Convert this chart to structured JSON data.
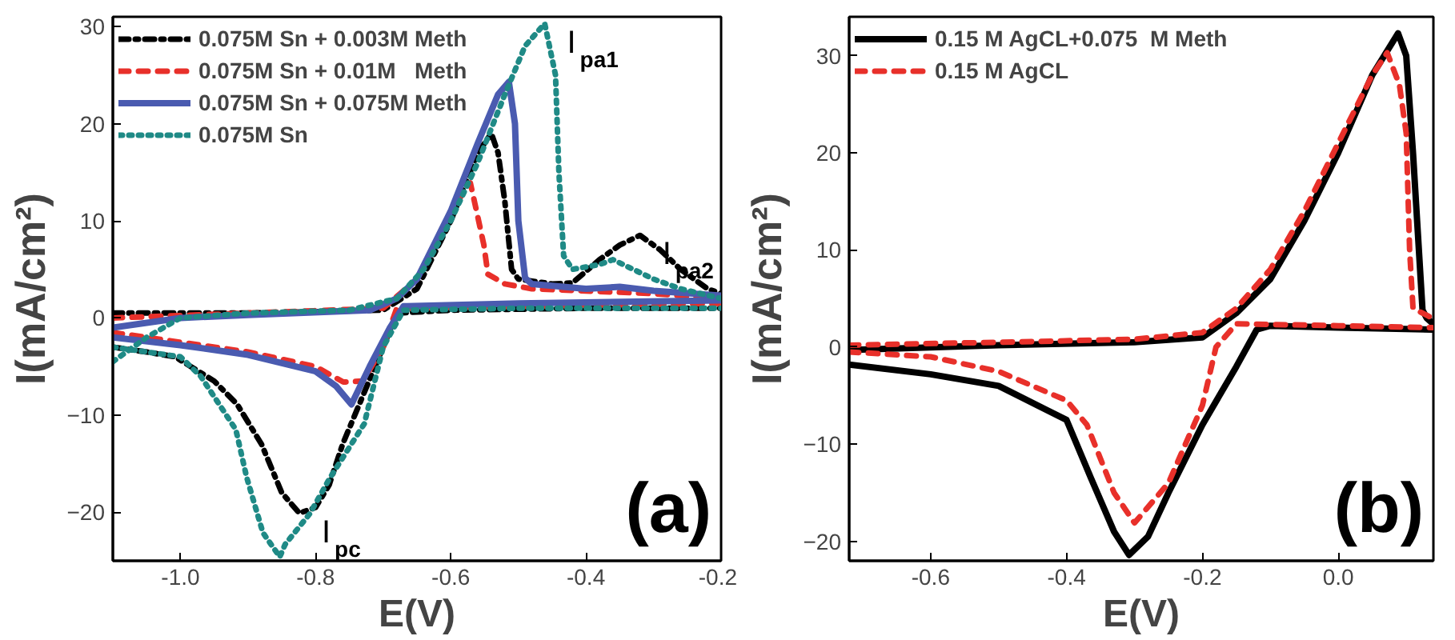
{
  "chart_data": [
    {
      "type": "line",
      "xlabel": "E(V)",
      "ylabel": "I(mA/cm²)",
      "xlim": [
        -1.1,
        -0.2
      ],
      "ylim": [
        -25,
        31
      ],
      "xticks": [
        {
          "value": -1.0,
          "label": "-1.0"
        },
        {
          "value": -0.8,
          "label": "-0.8"
        },
        {
          "value": -0.6,
          "label": "-0.6"
        },
        {
          "value": -0.4,
          "label": "-0.4"
        },
        {
          "value": -0.2,
          "label": "-0.2"
        }
      ],
      "yticks": [
        -20,
        -10,
        0,
        10,
        20,
        30
      ],
      "grid": false,
      "legend": "top left",
      "annotations": [
        {
          "text": "I$_{pa1}$",
          "x": -0.461,
          "y": 30.3
        },
        {
          "text": "I$_{pa2}$",
          "x": -0.32,
          "y": 8.5
        },
        {
          "text": "I$_{pc}$",
          "x": -0.824,
          "y": -20.1
        },
        "(a)"
      ],
      "series": [
        {
          "name": "0.075M Sn + 0.003M Meth",
          "color": "#000000",
          "line_style": "dashdot",
          "x": [
            -1.1,
            -0.9,
            -0.7,
            -0.65,
            -0.6,
            -0.56,
            -0.54,
            -0.53,
            -0.52,
            -0.51,
            -0.5,
            -0.45,
            -0.42,
            -0.38,
            -0.35,
            -0.32,
            -0.29,
            -0.26,
            -0.22,
            -0.2
          ],
          "values": [
            0.5,
            0.5,
            0.8,
            3,
            10,
            17,
            19,
            17,
            12,
            5,
            4,
            3.5,
            3.6,
            6,
            7.5,
            8.5,
            7,
            5,
            3,
            2.5
          ]
        },
        {
          "color": "#000000",
          "line_style": "dashdot",
          "x": [
            -1.1,
            -1.05,
            -1.008,
            -0.95,
            -0.916,
            -0.88,
            -0.85,
            -0.824,
            -0.8,
            -0.78,
            -0.76,
            -0.73,
            -0.7,
            -0.68,
            -0.6,
            -0.4,
            -0.2
          ],
          "values": [
            -3,
            -3.5,
            -4,
            -6.5,
            -8.9,
            -13,
            -18,
            -20.1,
            -19.5,
            -17.2,
            -13,
            -8,
            -3,
            0.5,
            0.8,
            1,
            1
          ]
        },
        {
          "name": "0.075M Sn + 0.01M   Meth",
          "color": "#e8302a",
          "line_style": "dashed",
          "x": [
            -1.1,
            -0.9,
            -0.7,
            -0.65,
            -0.6,
            -0.571,
            -0.565,
            -0.551,
            -0.545,
            -0.52,
            -0.48,
            -0.3,
            -0.2
          ],
          "values": [
            0,
            0.5,
            1,
            4,
            11,
            13.9,
            12,
            7.5,
            4.5,
            3.5,
            3,
            2.5,
            2
          ]
        },
        {
          "color": "#e8302a",
          "line_style": "dashed",
          "x": [
            -1.1,
            -1.0,
            -0.9,
            -0.8,
            -0.759,
            -0.73,
            -0.7,
            -0.68,
            -0.5,
            -0.2
          ],
          "values": [
            -1.5,
            -2.5,
            -3.5,
            -5,
            -6.6,
            -6.5,
            -3,
            1,
            1.2,
            1.5
          ]
        },
        {
          "name": "0.075M Sn + 0.075M Meth",
          "color": "#4a5bb0",
          "line_style": "solid",
          "x": [
            -1.1,
            -1.0,
            -0.9,
            -0.72,
            -0.68,
            -0.65,
            -0.6,
            -0.56,
            -0.53,
            -0.514,
            -0.505,
            -0.5,
            -0.49,
            -0.48,
            -0.4,
            -0.35,
            -0.3,
            -0.2
          ],
          "values": [
            -1,
            0,
            0.3,
            0.8,
            2,
            4,
            11,
            18,
            23,
            24.3,
            20,
            10,
            4.1,
            3.5,
            3,
            3.2,
            2.8,
            2.3
          ]
        },
        {
          "color": "#4a5bb0",
          "line_style": "solid",
          "x": [
            -1.1,
            -1.0,
            -0.9,
            -0.8,
            -0.77,
            -0.747,
            -0.72,
            -0.69,
            -0.67,
            -0.5,
            -0.2
          ],
          "values": [
            -2,
            -2.8,
            -3.8,
            -5.5,
            -7,
            -8.9,
            -5,
            -1,
            1.2,
            1.5,
            1.8
          ]
        },
        {
          "name": "0.075M Sn",
          "color": "#1f8a86",
          "line_style": "dotted",
          "x": [
            -1.1,
            -1.05,
            -1.0,
            -0.9,
            -0.75,
            -0.68,
            -0.64,
            -0.6,
            -0.56,
            -0.52,
            -0.49,
            -0.461,
            -0.445,
            -0.44,
            -0.433,
            -0.42,
            -0.38,
            -0.36,
            -0.33,
            -0.3,
            -0.26,
            -0.2
          ],
          "values": [
            -4.5,
            -2,
            0,
            0.5,
            0.8,
            2,
            5,
            10,
            16,
            23,
            28,
            30.3,
            25,
            15,
            6.4,
            5,
            5.5,
            6,
            5,
            4,
            3,
            2
          ]
        },
        {
          "color": "#1f8a86",
          "line_style": "dotted",
          "x": [
            -1.1,
            -1.05,
            -1.0,
            -0.97,
            -0.918,
            -0.902,
            -0.878,
            -0.853,
            -0.845,
            -0.808,
            -0.78,
            -0.728,
            -0.7,
            -0.67,
            -0.5,
            -0.2
          ],
          "values": [
            -3,
            -3.5,
            -4,
            -6,
            -11.5,
            -16.4,
            -22.1,
            -24.6,
            -23.3,
            -20.1,
            -16.6,
            -10.9,
            -3,
            0.8,
            1,
            1
          ]
        }
      ]
    },
    {
      "type": "line",
      "xlabel": "E(V)",
      "ylabel": "I(mA/cm²)",
      "xlim": [
        -0.72,
        0.14
      ],
      "ylim": [
        -22,
        34
      ],
      "xticks": [
        {
          "value": -0.6,
          "label": "-0.6"
        },
        {
          "value": -0.4,
          "label": "-0.4"
        },
        {
          "value": -0.2,
          "label": "-0.2"
        },
        {
          "value": 0.0,
          "label": "0.0"
        }
      ],
      "yticks": [
        -20,
        -10,
        0,
        10,
        20,
        30
      ],
      "grid": false,
      "legend": "top left",
      "annotations": [
        "(b)"
      ],
      "series": [
        {
          "name": "0.15 M AgCL+0.075  M Meth",
          "color": "#000000",
          "line_style": "solid",
          "x": [
            -0.72,
            -0.5,
            -0.3,
            -0.2,
            -0.15,
            -0.1,
            -0.05,
            0.0,
            0.05,
            0.088,
            0.1,
            0.11,
            0.124,
            0.13,
            0.138
          ],
          "values": [
            -0.3,
            0.2,
            0.5,
            1,
            3.5,
            7,
            13,
            20,
            28,
            32.3,
            30,
            20,
            3.8,
            3,
            2.5
          ]
        },
        {
          "color": "#000000",
          "line_style": "solid",
          "x": [
            -0.72,
            -0.6,
            -0.5,
            -0.4,
            -0.364,
            -0.33,
            -0.308,
            -0.28,
            -0.25,
            -0.2,
            -0.15,
            -0.12,
            -0.1,
            0.0,
            0.138
          ],
          "values": [
            -1.8,
            -2.8,
            -4,
            -7.5,
            -13.5,
            -19,
            -21.4,
            -19.5,
            -15,
            -8,
            -2,
            1.8,
            2.2,
            2,
            1.8
          ]
        },
        {
          "name": "0.15 M AgCL",
          "color": "#e8302a",
          "line_style": "dashed",
          "x": [
            -0.72,
            -0.5,
            -0.3,
            -0.2,
            -0.15,
            -0.1,
            -0.05,
            0.0,
            0.05,
            0.072,
            0.09,
            0.1,
            0.105,
            0.11,
            0.138
          ],
          "values": [
            0.2,
            0.5,
            0.8,
            1.5,
            4,
            8,
            14,
            21,
            28,
            30.3,
            27,
            22,
            10,
            4,
            3
          ]
        },
        {
          "color": "#e8302a",
          "line_style": "dashed",
          "x": [
            -0.72,
            -0.6,
            -0.5,
            -0.4,
            -0.37,
            -0.33,
            -0.3,
            -0.25,
            -0.2,
            -0.18,
            -0.15,
            0.0,
            0.138
          ],
          "values": [
            -0.5,
            -1,
            -2.5,
            -5.5,
            -8,
            -15,
            -18.1,
            -14,
            -6,
            0,
            2.4,
            2.2,
            2
          ]
        }
      ]
    }
  ]
}
